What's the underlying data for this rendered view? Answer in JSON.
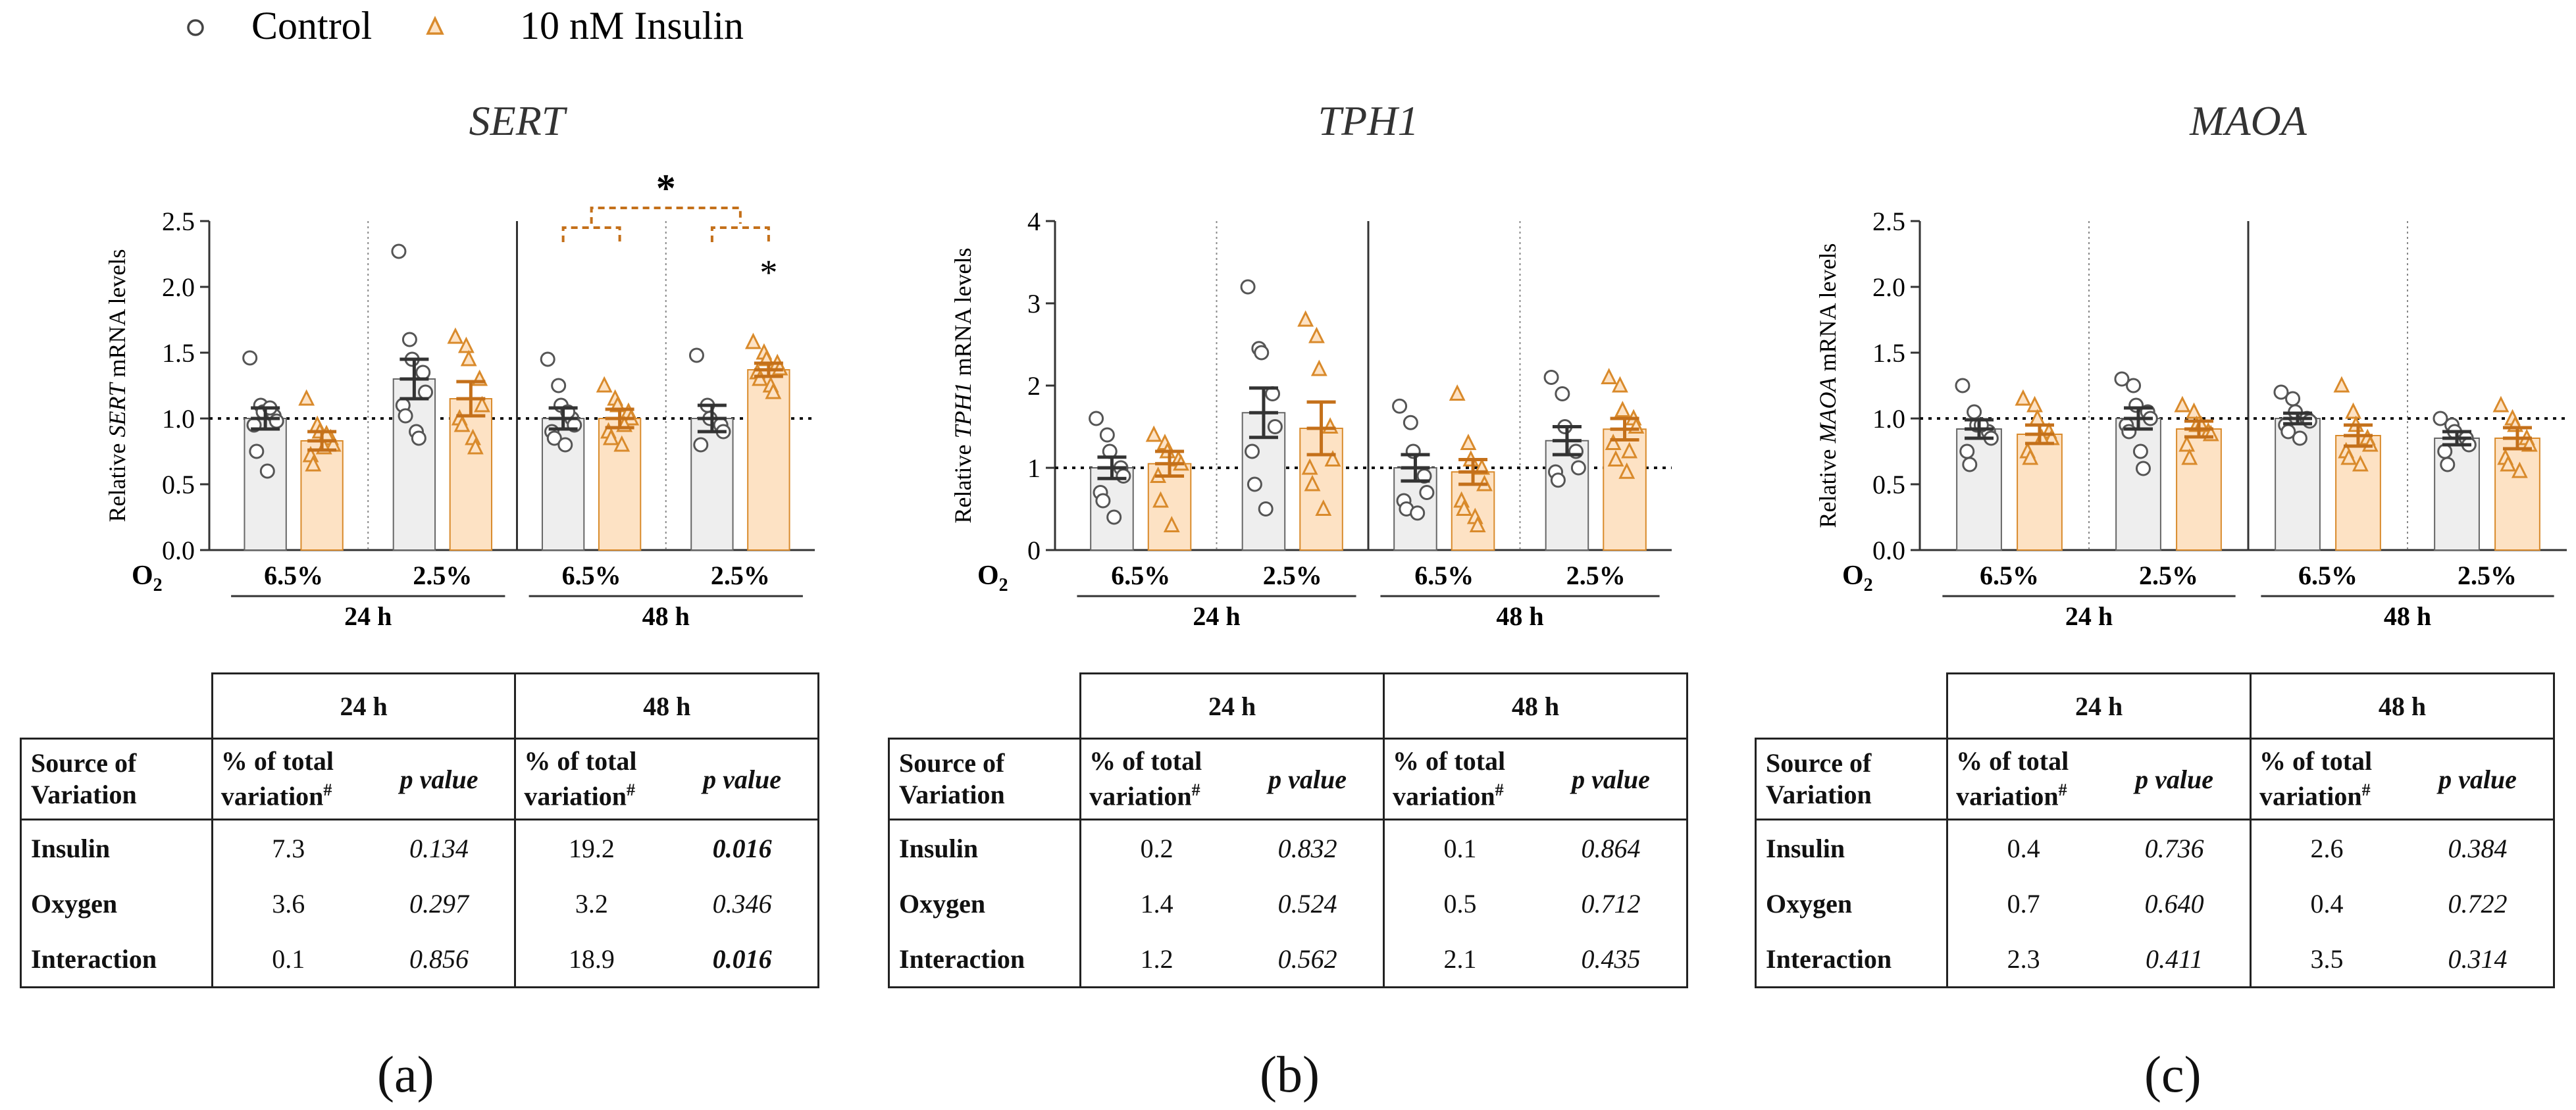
{
  "legend": {
    "control_label": "Control",
    "insulin_label": "10 nM Insulin"
  },
  "colors": {
    "control_fill": "#eeeeee",
    "control_stroke": "#555555",
    "insulin_fill": "#fde2c4",
    "insulin_stroke": "#d98a2b",
    "insulin_error": "#c4701a",
    "control_error": "#333333"
  },
  "chart_data": [
    {
      "type": "bar",
      "panel": "(a)",
      "title": "SERT",
      "ylabel_prefix": "Relative ",
      "ylabel_gene": "SERT",
      "ylabel_suffix": " mRNA levels",
      "ylim": [
        0,
        2.5
      ],
      "yticks": [
        "0.0",
        "0.5",
        "1.0",
        "1.5",
        "2.0",
        "2.5"
      ],
      "reference_line": 1.0,
      "o2_label": "O",
      "o2_sub": "2",
      "oxygen_labels": [
        "6.5%",
        "2.5%",
        "6.5%",
        "2.5%"
      ],
      "time_labels": [
        "24 h",
        "48 h"
      ],
      "groups": [
        {
          "time": "24 h",
          "oxygen": "6.5%",
          "control": {
            "mean": 1.0,
            "sem": 0.08,
            "points": [
              1.46,
              1.1,
              1.05,
              1.02,
              0.98,
              0.95,
              0.75,
              0.6,
              1.08
            ]
          },
          "insulin": {
            "mean": 0.83,
            "sem": 0.07,
            "points": [
              1.15,
              0.95,
              0.9,
              0.85,
              0.8,
              0.72,
              0.65,
              0.78,
              0.88
            ]
          }
        },
        {
          "time": "24 h",
          "oxygen": "2.5%",
          "control": {
            "mean": 1.3,
            "sem": 0.15,
            "points": [
              2.27,
              1.6,
              1.45,
              1.35,
              1.2,
              1.1,
              1.02,
              0.9,
              0.85
            ]
          },
          "insulin": {
            "mean": 1.15,
            "sem": 0.13,
            "points": [
              1.62,
              1.55,
              1.45,
              1.3,
              1.1,
              1.0,
              0.95,
              0.85,
              0.78
            ]
          }
        },
        {
          "time": "48 h",
          "oxygen": "6.5%",
          "control": {
            "mean": 1.0,
            "sem": 0.08,
            "points": [
              1.45,
              1.25,
              1.1,
              1.0,
              0.95,
              0.9,
              0.85,
              0.8,
              1.05
            ]
          },
          "insulin": {
            "mean": 1.0,
            "sem": 0.07,
            "points": [
              1.25,
              1.15,
              1.1,
              1.05,
              1.0,
              0.9,
              0.85,
              0.8,
              0.95
            ]
          }
        },
        {
          "time": "48 h",
          "oxygen": "2.5%",
          "control": {
            "mean": 1.0,
            "sem": 0.1,
            "points": [
              1.48,
              1.1,
              1.0,
              0.95,
              0.9,
              0.8
            ]
          },
          "insulin": {
            "mean": 1.37,
            "sem": 0.05,
            "points": [
              1.58,
              1.5,
              1.45,
              1.42,
              1.38,
              1.35,
              1.3,
              1.25,
              1.2
            ]
          }
        }
      ],
      "significance": {
        "symbol": "*",
        "top_bracket": true,
        "pair_brackets": [
          2,
          3
        ],
        "group_star": 3
      }
    },
    {
      "type": "bar",
      "panel": "(b)",
      "title": "TPH1",
      "ylabel_prefix": "Relative ",
      "ylabel_gene": "TPH1",
      "ylabel_suffix": " mRNA levels",
      "ylim": [
        0,
        4
      ],
      "yticks": [
        "0",
        "1",
        "2",
        "3",
        "4"
      ],
      "reference_line": 1.0,
      "o2_label": "O",
      "o2_sub": "2",
      "oxygen_labels": [
        "6.5%",
        "2.5%",
        "6.5%",
        "2.5%"
      ],
      "time_labels": [
        "24 h",
        "48 h"
      ],
      "groups": [
        {
          "time": "24 h",
          "oxygen": "6.5%",
          "control": {
            "mean": 1.0,
            "sem": 0.13,
            "points": [
              1.6,
              1.4,
              1.2,
              1.0,
              0.9,
              0.7,
              0.6,
              0.4
            ]
          },
          "insulin": {
            "mean": 1.05,
            "sem": 0.15,
            "points": [
              1.4,
              1.3,
              1.2,
              1.1,
              1.05,
              0.9,
              0.6,
              0.3
            ]
          }
        },
        {
          "time": "24 h",
          "oxygen": "2.5%",
          "control": {
            "mean": 1.67,
            "sem": 0.3,
            "points": [
              3.2,
              2.45,
              2.4,
              1.9,
              1.5,
              1.2,
              0.8,
              0.5
            ]
          },
          "insulin": {
            "mean": 1.48,
            "sem": 0.32,
            "points": [
              2.8,
              2.6,
              2.2,
              1.5,
              1.1,
              1.0,
              0.8,
              0.5
            ]
          }
        },
        {
          "time": "48 h",
          "oxygen": "6.5%",
          "control": {
            "mean": 1.0,
            "sem": 0.16,
            "points": [
              1.75,
              1.55,
              1.2,
              0.9,
              0.7,
              0.6,
              0.5,
              0.45
            ]
          },
          "insulin": {
            "mean": 0.95,
            "sem": 0.15,
            "points": [
              1.9,
              1.3,
              1.1,
              1.0,
              0.8,
              0.6,
              0.5,
              0.4,
              0.3
            ]
          }
        },
        {
          "time": "48 h",
          "oxygen": "2.5%",
          "control": {
            "mean": 1.33,
            "sem": 0.17,
            "points": [
              2.1,
              1.9,
              1.5,
              1.2,
              1.0,
              0.95,
              0.85
            ]
          },
          "insulin": {
            "mean": 1.47,
            "sem": 0.13,
            "points": [
              2.1,
              2.0,
              1.7,
              1.6,
              1.5,
              1.3,
              1.1,
              0.95,
              1.2
            ]
          }
        }
      ],
      "significance": null
    },
    {
      "type": "bar",
      "panel": "(c)",
      "title": "MAOA",
      "ylabel_prefix": "Relative ",
      "ylabel_gene": "MAOA",
      "ylabel_suffix": " mRNA levels",
      "ylim": [
        0,
        2.5
      ],
      "yticks": [
        "0.0",
        "0.5",
        "1.0",
        "1.5",
        "2.0",
        "2.5"
      ],
      "reference_line": 1.0,
      "o2_label": "O",
      "o2_sub": "2",
      "oxygen_labels": [
        "6.5%",
        "2.5%",
        "6.5%",
        "2.5%"
      ],
      "time_labels": [
        "24 h",
        "48 h"
      ],
      "groups": [
        {
          "time": "24 h",
          "oxygen": "6.5%",
          "control": {
            "mean": 0.92,
            "sem": 0.07,
            "points": [
              1.25,
              1.05,
              0.95,
              0.9,
              0.85,
              0.75,
              0.65,
              0.95
            ]
          },
          "insulin": {
            "mean": 0.88,
            "sem": 0.07,
            "points": [
              1.15,
              1.1,
              1.0,
              0.9,
              0.85,
              0.75,
              0.7,
              0.85
            ]
          }
        },
        {
          "time": "24 h",
          "oxygen": "2.5%",
          "control": {
            "mean": 1.0,
            "sem": 0.08,
            "points": [
              1.3,
              1.25,
              1.1,
              1.05,
              1.0,
              0.95,
              0.9,
              0.75,
              0.62
            ]
          },
          "insulin": {
            "mean": 0.92,
            "sem": 0.06,
            "points": [
              1.1,
              1.05,
              0.95,
              0.9,
              0.88,
              0.8,
              0.7,
              0.95
            ]
          }
        },
        {
          "time": "48 h",
          "oxygen": "6.5%",
          "control": {
            "mean": 1.0,
            "sem": 0.04,
            "points": [
              1.2,
              1.15,
              1.05,
              1.0,
              0.98,
              0.95,
              0.9,
              0.85
            ]
          },
          "insulin": {
            "mean": 0.87,
            "sem": 0.08,
            "points": [
              1.25,
              1.05,
              0.95,
              0.85,
              0.8,
              0.75,
              0.7,
              0.65
            ]
          }
        },
        {
          "time": "48 h",
          "oxygen": "2.5%",
          "control": {
            "mean": 0.85,
            "sem": 0.05,
            "points": [
              1.0,
              0.95,
              0.9,
              0.85,
              0.8,
              0.75,
              0.65
            ]
          },
          "insulin": {
            "mean": 0.85,
            "sem": 0.08,
            "points": [
              1.1,
              1.0,
              0.95,
              0.85,
              0.8,
              0.7,
              0.65,
              0.6
            ]
          }
        }
      ],
      "significance": null
    }
  ],
  "tables": [
    {
      "panel_label": "(a)",
      "time_headers": [
        "24 h",
        "48 h"
      ],
      "source_header": "Source of Variation",
      "pct_header": "% of total variation",
      "pct_sup": "#",
      "p_header": "p value",
      "rows": [
        {
          "source": "Insulin",
          "pct_24": "7.3",
          "p_24": "0.134",
          "p_24_bold": false,
          "pct_48": "19.2",
          "p_48": "0.016",
          "p_48_bold": true
        },
        {
          "source": "Oxygen",
          "pct_24": "3.6",
          "p_24": "0.297",
          "p_24_bold": false,
          "pct_48": "3.2",
          "p_48": "0.346",
          "p_48_bold": false
        },
        {
          "source": "Interaction",
          "pct_24": "0.1",
          "p_24": "0.856",
          "p_24_bold": false,
          "pct_48": "18.9",
          "p_48": "0.016",
          "p_48_bold": true
        }
      ]
    },
    {
      "panel_label": "(b)",
      "time_headers": [
        "24 h",
        "48 h"
      ],
      "source_header": "Source of Variation",
      "pct_header": "% of total variation",
      "pct_sup": "#",
      "p_header": "p value",
      "rows": [
        {
          "source": "Insulin",
          "pct_24": "0.2",
          "p_24": "0.832",
          "p_24_bold": false,
          "pct_48": "0.1",
          "p_48": "0.864",
          "p_48_bold": false
        },
        {
          "source": "Oxygen",
          "pct_24": "1.4",
          "p_24": "0.524",
          "p_24_bold": false,
          "pct_48": "0.5",
          "p_48": "0.712",
          "p_48_bold": false
        },
        {
          "source": "Interaction",
          "pct_24": "1.2",
          "p_24": "0.562",
          "p_24_bold": false,
          "pct_48": "2.1",
          "p_48": "0.435",
          "p_48_bold": false
        }
      ]
    },
    {
      "panel_label": "(c)",
      "time_headers": [
        "24 h",
        "48 h"
      ],
      "source_header": "Source of Variation",
      "pct_header": "% of total variation",
      "pct_sup": "#",
      "p_header": "p value",
      "rows": [
        {
          "source": "Insulin",
          "pct_24": "0.4",
          "p_24": "0.736",
          "p_24_bold": false,
          "pct_48": "2.6",
          "p_48": "0.384",
          "p_48_bold": false
        },
        {
          "source": "Oxygen",
          "pct_24": "0.7",
          "p_24": "0.640",
          "p_24_bold": false,
          "pct_48": "0.4",
          "p_48": "0.722",
          "p_48_bold": false
        },
        {
          "source": "Interaction",
          "pct_24": "2.3",
          "p_24": "0.411",
          "p_24_bold": false,
          "pct_48": "3.5",
          "p_48": "0.314",
          "p_48_bold": false
        }
      ]
    }
  ]
}
